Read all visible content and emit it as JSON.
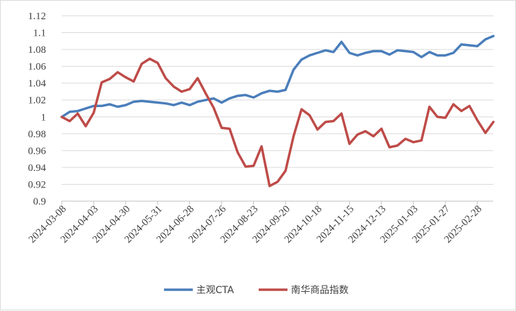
{
  "chart_data": {
    "type": "line",
    "title": "",
    "xlabel": "",
    "ylabel": "",
    "ylim": [
      0.9,
      1.12
    ],
    "y_ticks": [
      "1.12",
      "1.1",
      "1.08",
      "1.06",
      "1.04",
      "1.02",
      "1",
      "0.98",
      "0.96",
      "0.94",
      "0.92",
      "0.9"
    ],
    "y_tick_values": [
      1.12,
      1.1,
      1.08,
      1.06,
      1.04,
      1.02,
      1.0,
      0.98,
      0.96,
      0.94,
      0.92,
      0.9
    ],
    "grid": "horizontal",
    "legend_position": "bottom",
    "x_tick_labels": [
      {
        "label": "2024-03-08",
        "index": 0
      },
      {
        "label": "2024-04-03",
        "index": 4
      },
      {
        "label": "2024-04-30",
        "index": 8
      },
      {
        "label": "2024-05-31",
        "index": 12
      },
      {
        "label": "2024-06-28",
        "index": 16
      },
      {
        "label": "2024-07-26",
        "index": 20
      },
      {
        "label": "2024-08-23",
        "index": 24
      },
      {
        "label": "2024-09-20",
        "index": 28
      },
      {
        "label": "2024-10-18",
        "index": 32
      },
      {
        "label": "2024-11-15",
        "index": 36
      },
      {
        "label": "2024-12-13",
        "index": 40
      },
      {
        "label": "2025-01-03",
        "index": 44
      },
      {
        "label": "2025-01-27",
        "index": 48
      },
      {
        "label": "2025-02-28",
        "index": 52
      }
    ],
    "series": [
      {
        "name": "主观CTA",
        "color": "#4a7ebb",
        "values": [
          1.0,
          1.006,
          1.007,
          1.01,
          1.013,
          1.013,
          1.015,
          1.012,
          1.014,
          1.018,
          1.019,
          1.018,
          1.017,
          1.016,
          1.014,
          1.017,
          1.014,
          1.018,
          1.02,
          1.022,
          1.017,
          1.022,
          1.025,
          1.026,
          1.023,
          1.028,
          1.031,
          1.03,
          1.032,
          1.056,
          1.068,
          1.073,
          1.076,
          1.079,
          1.077,
          1.089,
          1.076,
          1.073,
          1.076,
          1.078,
          1.078,
          1.074,
          1.079,
          1.078,
          1.077,
          1.071,
          1.077,
          1.073,
          1.073,
          1.076,
          1.086,
          1.085,
          1.084,
          1.092,
          1.096
        ]
      },
      {
        "name": "南华商品指数",
        "color": "#be4b48",
        "values": [
          1.0,
          0.995,
          1.004,
          0.989,
          1.005,
          1.041,
          1.045,
          1.053,
          1.047,
          1.042,
          1.063,
          1.069,
          1.064,
          1.046,
          1.036,
          1.03,
          1.033,
          1.046,
          1.028,
          1.011,
          0.987,
          0.986,
          0.958,
          0.941,
          0.942,
          0.965,
          0.918,
          0.923,
          0.936,
          0.977,
          1.009,
          1.002,
          0.985,
          0.994,
          0.995,
          1.004,
          0.968,
          0.979,
          0.983,
          0.977,
          0.986,
          0.964,
          0.966,
          0.974,
          0.97,
          0.972,
          1.012,
          1.0,
          0.999,
          1.015,
          1.007,
          1.013,
          0.996,
          0.981,
          0.994
        ]
      }
    ]
  }
}
